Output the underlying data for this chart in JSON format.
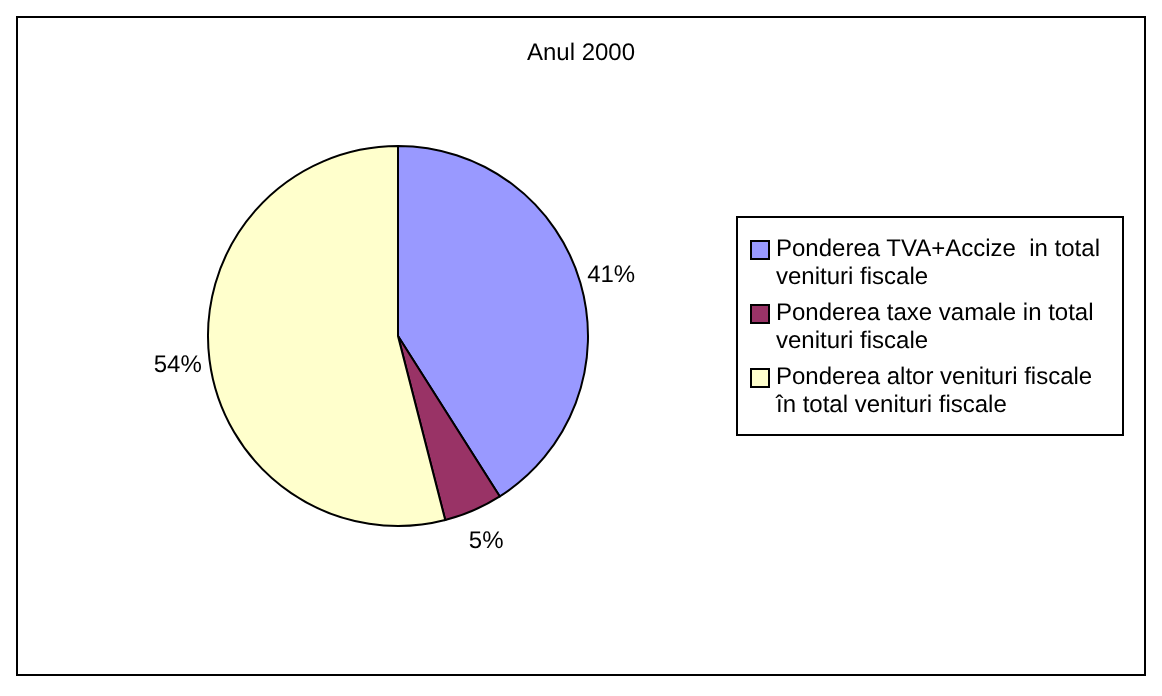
{
  "chart_data": {
    "type": "pie",
    "title": "Anul 2000",
    "categories": [
      "Ponderea TVA+Accize  in total venituri fiscale",
      "Ponderea taxe vamale in total venituri fiscale",
      "Ponderea altor venituri fiscale în total venituri fiscale"
    ],
    "values": [
      41,
      5,
      54
    ],
    "value_labels": [
      "41%",
      "5%",
      "54%"
    ],
    "colors": [
      "#9999ff",
      "#993366",
      "#ffffcc"
    ],
    "legend": "right"
  }
}
